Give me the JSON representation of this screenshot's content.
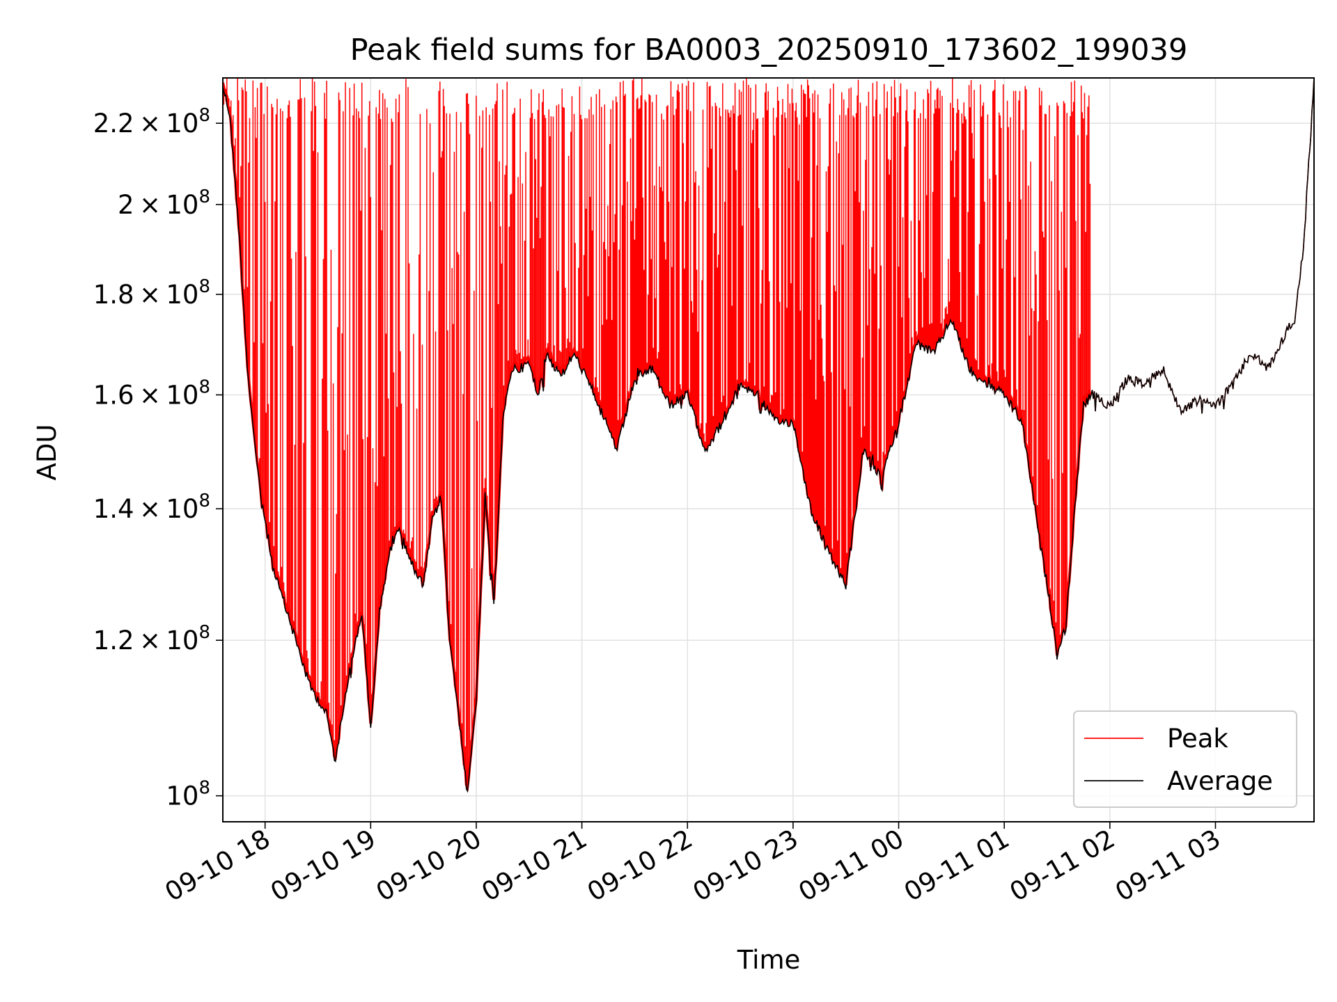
{
  "chart_data": {
    "type": "line",
    "title": "Peak field sums for BA0003_20250910_173602_199039",
    "xlabel": "Time",
    "ylabel": "ADU",
    "x_start": "2025-09-10 17:36",
    "x_end": "2025-09-11 03:56",
    "xlim": [
      "2025-09-10 17:36",
      "2025-09-11 03:56"
    ],
    "ylim": [
      97000000,
      232000000
    ],
    "y_scale": "log",
    "grid": true,
    "legend_position": "lower right",
    "x_ticks": [
      {
        "t": "2025-09-10 18:00",
        "label": "09-10 18"
      },
      {
        "t": "2025-09-10 19:00",
        "label": "09-10 19"
      },
      {
        "t": "2025-09-10 20:00",
        "label": "09-10 20"
      },
      {
        "t": "2025-09-10 21:00",
        "label": "09-10 21"
      },
      {
        "t": "2025-09-10 22:00",
        "label": "09-10 22"
      },
      {
        "t": "2025-09-10 23:00",
        "label": "09-10 23"
      },
      {
        "t": "2025-09-11 00:00",
        "label": "09-11 00"
      },
      {
        "t": "2025-09-11 01:00",
        "label": "09-11 01"
      },
      {
        "t": "2025-09-11 02:00",
        "label": "09-11 02"
      },
      {
        "t": "2025-09-11 03:00",
        "label": "09-11 03"
      }
    ],
    "y_ticks": [
      {
        "value": 100000000,
        "mantissa": "",
        "exp": "8"
      },
      {
        "value": 120000000,
        "mantissa": "1.2",
        "exp": "8"
      },
      {
        "value": 140000000,
        "mantissa": "1.4",
        "exp": "8"
      },
      {
        "value": 160000000,
        "mantissa": "1.6",
        "exp": "8"
      },
      {
        "value": 180000000,
        "mantissa": "1.8",
        "exp": "8"
      },
      {
        "value": 200000000,
        "mantissa": "2",
        "exp": "8"
      },
      {
        "value": 220000000,
        "mantissa": "2.2",
        "exp": "8"
      }
    ],
    "series": [
      {
        "name": "Average",
        "color": "#000000",
        "x": [
          "2025-09-10 17:36",
          "2025-09-10 17:40",
          "2025-09-10 17:45",
          "2025-09-10 17:50",
          "2025-09-10 17:55",
          "2025-09-10 18:00",
          "2025-09-10 18:05",
          "2025-09-10 18:10",
          "2025-09-10 18:15",
          "2025-09-10 18:20",
          "2025-09-10 18:25",
          "2025-09-10 18:30",
          "2025-09-10 18:35",
          "2025-09-10 18:40",
          "2025-09-10 18:45",
          "2025-09-10 18:50",
          "2025-09-10 18:55",
          "2025-09-10 19:00",
          "2025-09-10 19:05",
          "2025-09-10 19:10",
          "2025-09-10 19:15",
          "2025-09-10 19:20",
          "2025-09-10 19:25",
          "2025-09-10 19:30",
          "2025-09-10 19:35",
          "2025-09-10 19:40",
          "2025-09-10 19:45",
          "2025-09-10 19:50",
          "2025-09-10 19:55",
          "2025-09-10 20:00",
          "2025-09-10 20:05",
          "2025-09-10 20:10",
          "2025-09-10 20:15",
          "2025-09-10 20:20",
          "2025-09-10 20:25",
          "2025-09-10 20:30",
          "2025-09-10 20:35",
          "2025-09-10 20:40",
          "2025-09-10 20:45",
          "2025-09-10 20:50",
          "2025-09-10 20:55",
          "2025-09-10 21:00",
          "2025-09-10 21:10",
          "2025-09-10 21:20",
          "2025-09-10 21:30",
          "2025-09-10 21:40",
          "2025-09-10 21:50",
          "2025-09-10 22:00",
          "2025-09-10 22:10",
          "2025-09-10 22:20",
          "2025-09-10 22:30",
          "2025-09-10 22:40",
          "2025-09-10 22:50",
          "2025-09-10 23:00",
          "2025-09-10 23:10",
          "2025-09-10 23:20",
          "2025-09-10 23:30",
          "2025-09-10 23:40",
          "2025-09-10 23:50",
          "2025-09-11 00:00",
          "2025-09-11 00:10",
          "2025-09-11 00:20",
          "2025-09-11 00:30",
          "2025-09-11 00:40",
          "2025-09-11 00:50",
          "2025-09-11 01:00",
          "2025-09-11 01:10",
          "2025-09-11 01:15",
          "2025-09-11 01:20",
          "2025-09-11 01:25",
          "2025-09-11 01:30",
          "2025-09-11 01:35",
          "2025-09-11 01:40",
          "2025-09-11 01:45",
          "2025-09-11 01:50",
          "2025-09-11 02:00",
          "2025-09-11 02:10",
          "2025-09-11 02:20",
          "2025-09-11 02:30",
          "2025-09-11 02:40",
          "2025-09-11 02:50",
          "2025-09-11 03:00",
          "2025-09-11 03:10",
          "2025-09-11 03:20",
          "2025-09-11 03:30",
          "2025-09-11 03:40",
          "2025-09-11 03:45",
          "2025-09-11 03:50",
          "2025-09-11 03:56"
        ],
        "values": [
          230000000,
          222000000,
          195000000,
          165000000,
          148000000,
          138000000,
          130000000,
          126000000,
          122000000,
          118000000,
          114000000,
          112000000,
          110000000,
          104000000,
          112000000,
          118000000,
          124000000,
          108000000,
          124000000,
          132000000,
          137000000,
          134000000,
          130000000,
          128000000,
          138000000,
          142000000,
          120000000,
          110000000,
          100000000,
          112000000,
          142000000,
          125000000,
          155000000,
          165000000,
          165000000,
          166000000,
          160000000,
          168000000,
          165000000,
          164000000,
          168000000,
          165000000,
          158000000,
          150000000,
          163000000,
          165000000,
          158000000,
          160000000,
          150000000,
          155000000,
          162000000,
          160000000,
          155000000,
          155000000,
          140000000,
          133000000,
          128000000,
          150000000,
          145000000,
          155000000,
          170000000,
          168000000,
          175000000,
          165000000,
          162000000,
          160000000,
          155000000,
          145000000,
          135000000,
          127000000,
          118000000,
          122000000,
          140000000,
          158000000,
          160000000,
          158000000,
          163000000,
          162000000,
          165000000,
          157000000,
          159000000,
          158000000,
          162000000,
          168000000,
          165000000,
          172000000,
          175000000,
          190000000,
          232000000
        ]
      },
      {
        "name": "Peak",
        "color": "#ff0000"
      }
    ]
  }
}
